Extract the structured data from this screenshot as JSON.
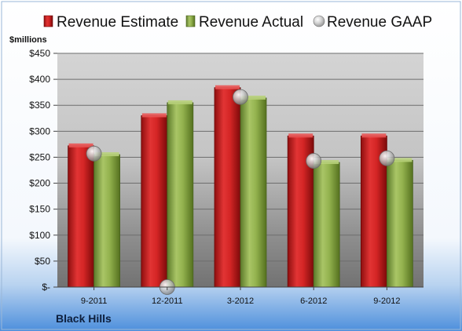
{
  "chart_data": {
    "type": "bar",
    "title": "",
    "ylabel": "$millions",
    "xlabel": "",
    "company": "Black Hills",
    "categories": [
      "9-2011",
      "12-2011",
      "3-2012",
      "6-2012",
      "9-2012"
    ],
    "ylim": [
      0,
      450
    ],
    "yticks": [
      0,
      50,
      100,
      150,
      200,
      250,
      300,
      350,
      400,
      450
    ],
    "ytick_labels": [
      "$-",
      "$50",
      "$100",
      "$150",
      "$200",
      "$250",
      "$300",
      "$350",
      "$400",
      "$450"
    ],
    "grid": true,
    "legend_position": "top",
    "series": [
      {
        "name": "Revenue Estimate",
        "kind": "bar",
        "color": "#cc1f1f",
        "values": [
          272,
          330,
          384,
          291,
          291
        ]
      },
      {
        "name": "Revenue Actual",
        "kind": "bar",
        "color": "#8fae4c",
        "values": [
          255,
          355,
          364,
          240,
          244
        ]
      },
      {
        "name": "Revenue GAAP",
        "kind": "marker",
        "color": "#b8b8b8",
        "values": [
          257,
          0,
          366,
          243,
          248
        ]
      }
    ]
  }
}
